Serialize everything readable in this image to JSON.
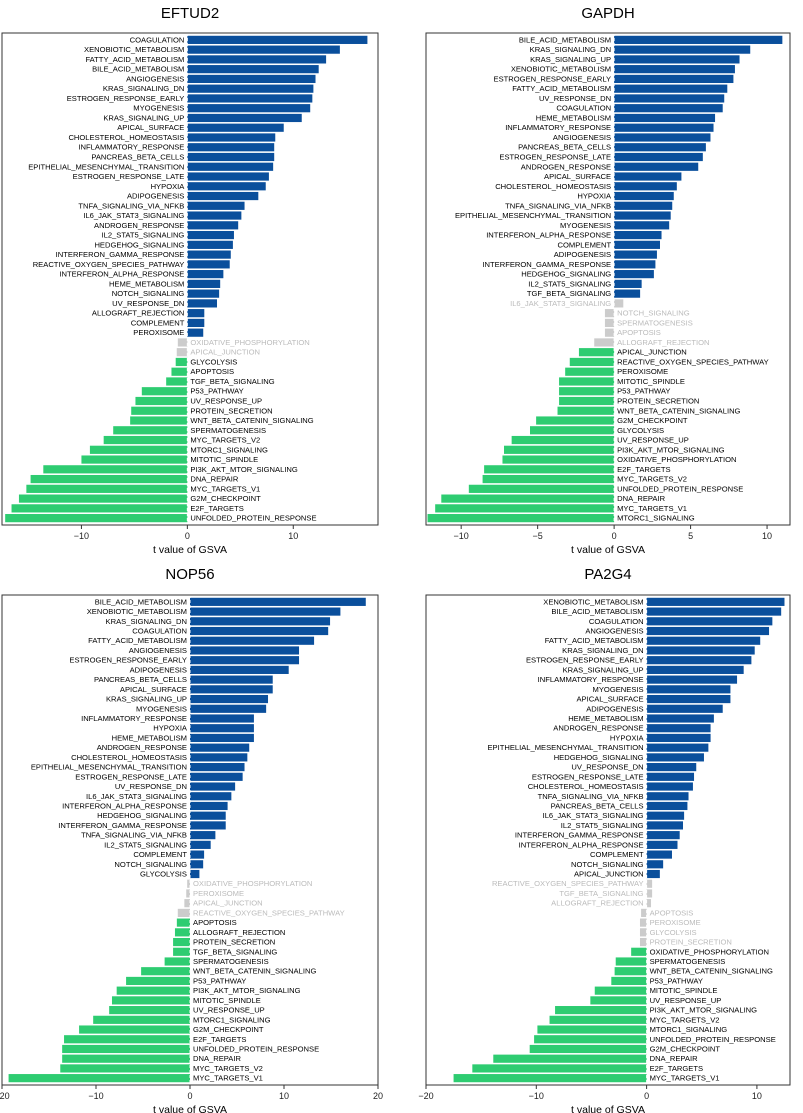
{
  "chart_data": [
    {
      "type": "bar",
      "title": "EFTUD2",
      "xlabel": "t value of GSVA",
      "xlim": [
        -17.5,
        18.0
      ],
      "xticks": [
        -10,
        0,
        10
      ],
      "orientation": "horizontal",
      "colors": {
        "positive": "#0a4f9c",
        "negative": "#2ecc71",
        "not_significant": "#cccccc"
      },
      "categories": [
        "COAGULATION",
        "XENOBIOTIC_METABOLISM",
        "FATTY_ACID_METABOLISM",
        "BILE_ACID_METABOLISM",
        "ANGIOGENESIS",
        "KRAS_SIGNALING_DN",
        "ESTROGEN_RESPONSE_EARLY",
        "MYOGENESIS",
        "KRAS_SIGNALING_UP",
        "APICAL_SURFACE",
        "CHOLESTEROL_HOMEOSTASIS",
        "INFLAMMATORY_RESPONSE",
        "PANCREAS_BETA_CELLS",
        "EPITHELIAL_MESENCHYMAL_TRANSITION",
        "ESTROGEN_RESPONSE_LATE",
        "HYPOXIA",
        "ADIPOGENESIS",
        "TNFA_SIGNALING_VIA_NFKB",
        "IL6_JAK_STAT3_SIGNALING",
        "ANDROGEN_RESPONSE",
        "IL2_STAT5_SIGNALING",
        "HEDGEHOG_SIGNALING",
        "INTERFERON_GAMMA_RESPONSE",
        "REACTIVE_OXYGEN_SPECIES_PATHWAY",
        "INTERFERON_ALPHA_RESPONSE",
        "HEME_METABOLISM",
        "NOTCH_SIGNALING",
        "UV_RESPONSE_DN",
        "ALLOGRAFT_REJECTION",
        "COMPLEMENT",
        "PEROXISOME",
        "OXIDATIVE_PHOSPHORYLATION",
        "APICAL_JUNCTION",
        "GLYCOLYSIS",
        "APOPTOSIS",
        "TGF_BETA_SIGNALING",
        "P53_PATHWAY",
        "UV_RESPONSE_UP",
        "PROTEIN_SECRETION",
        "WNT_BETA_CATENIN_SIGNALING",
        "SPERMATOGENESIS",
        "MYC_TARGETS_V2",
        "MTORC1_SIGNALING",
        "MITOTIC_SPINDLE",
        "PI3K_AKT_MTOR_SIGNALING",
        "DNA_REPAIR",
        "MYC_TARGETS_V1",
        "G2M_CHECKPOINT",
        "E2F_TARGETS",
        "UNFOLDED_PROTEIN_RESPONSE"
      ],
      "values": [
        17.0,
        14.4,
        13.1,
        12.4,
        12.1,
        11.9,
        11.8,
        11.6,
        10.8,
        9.1,
        8.3,
        8.2,
        8.2,
        8.1,
        7.7,
        7.4,
        6.7,
        5.4,
        5.1,
        4.8,
        4.4,
        4.3,
        4.1,
        4.0,
        3.4,
        3.1,
        3.0,
        2.8,
        1.6,
        1.6,
        1.5,
        -0.9,
        -1.0,
        -1.1,
        -1.5,
        -2.0,
        -4.3,
        -4.9,
        -5.3,
        -5.4,
        -7.0,
        -7.9,
        -9.2,
        -10.0,
        -13.6,
        -14.8,
        -15.2,
        -15.9,
        -16.6,
        -17.2
      ],
      "significant": [
        1,
        1,
        1,
        1,
        1,
        1,
        1,
        1,
        1,
        1,
        1,
        1,
        1,
        1,
        1,
        1,
        1,
        1,
        1,
        1,
        1,
        1,
        1,
        1,
        1,
        1,
        1,
        1,
        1,
        1,
        1,
        0,
        0,
        1,
        1,
        1,
        1,
        1,
        1,
        1,
        1,
        1,
        1,
        1,
        1,
        1,
        1,
        1,
        1,
        1
      ]
    },
    {
      "type": "bar",
      "title": "GAPDH",
      "xlabel": "t value of GSVA",
      "xlim": [
        -12.3,
        11.5
      ],
      "xticks": [
        -10,
        -5,
        0,
        5,
        10
      ],
      "orientation": "horizontal",
      "colors": {
        "positive": "#0a4f9c",
        "negative": "#2ecc71",
        "not_significant": "#cccccc"
      },
      "categories": [
        "BILE_ACID_METABOLISM",
        "KRAS_SIGNALING_DN",
        "KRAS_SIGNALING_UP",
        "XENOBIOTIC_METABOLISM",
        "ESTROGEN_RESPONSE_EARLY",
        "FATTY_ACID_METABOLISM",
        "UV_RESPONSE_DN",
        "COAGULATION",
        "HEME_METABOLISM",
        "INFLAMMATORY_RESPONSE",
        "ANGIOGENESIS",
        "PANCREAS_BETA_CELLS",
        "ESTROGEN_RESPONSE_LATE",
        "ANDROGEN_RESPONSE",
        "APICAL_SURFACE",
        "CHOLESTEROL_HOMEOSTASIS",
        "HYPOXIA",
        "TNFA_SIGNALING_VIA_NFKB",
        "EPITHELIAL_MESENCHYMAL_TRANSITION",
        "MYOGENESIS",
        "INTERFERON_ALPHA_RESPONSE",
        "COMPLEMENT",
        "ADIPOGENESIS",
        "INTERFERON_GAMMA_RESPONSE",
        "HEDGEHOG_SIGNALING",
        "IL2_STAT5_SIGNALING",
        "TGF_BETA_SIGNALING",
        "IL6_JAK_STAT3_SIGNALING",
        "NOTCH_SIGNALING",
        "SPERMATOGENESIS",
        "APOPTOSIS",
        "ALLOGRAFT_REJECTION",
        "APICAL_JUNCTION",
        "REACTIVE_OXYGEN_SPECIES_PATHWAY",
        "PEROXISOME",
        "MITOTIC_SPINDLE",
        "P53_PATHWAY",
        "PROTEIN_SECRETION",
        "WNT_BETA_CATENIN_SIGNALING",
        "G2M_CHECKPOINT",
        "GLYCOLYSIS",
        "UV_RESPONSE_UP",
        "PI3K_AKT_MTOR_SIGNALING",
        "OXIDATIVE_PHOSPHORYLATION",
        "E2F_TARGETS",
        "MYC_TARGETS_V2",
        "UNFOLDED_PROTEIN_RESPONSE",
        "DNA_REPAIR",
        "MYC_TARGETS_V1",
        "MTORC1_SIGNALING"
      ],
      "values": [
        11.0,
        8.9,
        8.2,
        7.9,
        7.8,
        7.4,
        7.2,
        7.1,
        6.6,
        6.5,
        6.3,
        6.0,
        5.8,
        5.5,
        4.4,
        4.1,
        3.9,
        3.8,
        3.7,
        3.6,
        3.1,
        3.0,
        2.8,
        2.7,
        2.6,
        1.8,
        1.7,
        0.6,
        -0.6,
        -0.6,
        -0.6,
        -1.3,
        -2.3,
        -2.9,
        -3.2,
        -3.6,
        -3.6,
        -3.6,
        -3.7,
        -5.1,
        -5.5,
        -6.7,
        -7.2,
        -7.3,
        -8.5,
        -8.6,
        -9.5,
        -11.3,
        -11.7,
        -12.2
      ],
      "significant": [
        1,
        1,
        1,
        1,
        1,
        1,
        1,
        1,
        1,
        1,
        1,
        1,
        1,
        1,
        1,
        1,
        1,
        1,
        1,
        1,
        1,
        1,
        1,
        1,
        1,
        1,
        1,
        0,
        0,
        0,
        0,
        0,
        1,
        1,
        1,
        1,
        1,
        1,
        1,
        1,
        1,
        1,
        1,
        1,
        1,
        1,
        1,
        1,
        1,
        1
      ]
    },
    {
      "type": "bar",
      "title": "NOP56",
      "xlabel": "t value of GSVA",
      "xlim": [
        -20.0,
        20.0
      ],
      "xticks": [
        -20,
        -10,
        0,
        10,
        20
      ],
      "orientation": "horizontal",
      "colors": {
        "positive": "#0a4f9c",
        "negative": "#2ecc71",
        "not_significant": "#cccccc"
      },
      "categories": [
        "BILE_ACID_METABOLISM",
        "XENOBIOTIC_METABOLISM",
        "KRAS_SIGNALING_DN",
        "COAGULATION",
        "FATTY_ACID_METABOLISM",
        "ANGIOGENESIS",
        "ESTROGEN_RESPONSE_EARLY",
        "ADIPOGENESIS",
        "PANCREAS_BETA_CELLS",
        "APICAL_SURFACE",
        "KRAS_SIGNALING_UP",
        "MYOGENESIS",
        "INFLAMMATORY_RESPONSE",
        "HYPOXIA",
        "HEME_METABOLISM",
        "ANDROGEN_RESPONSE",
        "CHOLESTEROL_HOMEOSTASIS",
        "EPITHELIAL_MESENCHYMAL_TRANSITION",
        "ESTROGEN_RESPONSE_LATE",
        "UV_RESPONSE_DN",
        "IL6_JAK_STAT3_SIGNALING",
        "INTERFERON_ALPHA_RESPONSE",
        "HEDGEHOG_SIGNALING",
        "INTERFERON_GAMMA_RESPONSE",
        "TNFA_SIGNALING_VIA_NFKB",
        "IL2_STAT5_SIGNALING",
        "COMPLEMENT",
        "NOTCH_SIGNALING",
        "GLYCOLYSIS",
        "OXIDATIVE_PHOSPHORYLATION",
        "PEROXISOME",
        "APICAL_JUNCTION",
        "REACTIVE_OXYGEN_SPECIES_PATHWAY",
        "APOPTOSIS",
        "ALLOGRAFT_REJECTION",
        "PROTEIN_SECRETION",
        "TGF_BETA_SIGNALING",
        "SPERMATOGENESIS",
        "WNT_BETA_CATENIN_SIGNALING",
        "P53_PATHWAY",
        "PI3K_AKT_MTOR_SIGNALING",
        "MITOTIC_SPINDLE",
        "UV_RESPONSE_UP",
        "MTORC1_SIGNALING",
        "G2M_CHECKPOINT",
        "E2F_TARGETS",
        "UNFOLDED_PROTEIN_RESPONSE",
        "DNA_REPAIR",
        "MYC_TARGETS_V2",
        "MYC_TARGETS_V1"
      ],
      "values": [
        18.7,
        16.0,
        14.9,
        14.7,
        13.2,
        11.6,
        11.6,
        10.5,
        8.8,
        8.8,
        8.3,
        8.1,
        6.8,
        6.8,
        6.8,
        6.3,
        6.1,
        5.8,
        5.6,
        4.8,
        4.4,
        4.0,
        3.8,
        3.8,
        2.7,
        2.2,
        1.5,
        1.4,
        1.0,
        -0.3,
        -0.4,
        -0.6,
        -1.3,
        -1.4,
        -1.6,
        -1.8,
        -1.8,
        -2.7,
        -5.2,
        -6.8,
        -7.8,
        -8.3,
        -8.6,
        -10.3,
        -11.8,
        -13.4,
        -13.6,
        -13.6,
        -13.8,
        -19.3
      ],
      "significant": [
        1,
        1,
        1,
        1,
        1,
        1,
        1,
        1,
        1,
        1,
        1,
        1,
        1,
        1,
        1,
        1,
        1,
        1,
        1,
        1,
        1,
        1,
        1,
        1,
        1,
        1,
        1,
        1,
        1,
        0,
        0,
        0,
        0,
        1,
        1,
        1,
        1,
        1,
        1,
        1,
        1,
        1,
        1,
        1,
        1,
        1,
        1,
        1,
        1,
        1
      ]
    },
    {
      "type": "bar",
      "title": "PA2G4",
      "xlabel": "t value of GSVA",
      "xlim": [
        -20.0,
        13.0
      ],
      "xticks": [
        -20,
        -10,
        0,
        10
      ],
      "orientation": "horizontal",
      "colors": {
        "positive": "#0a4f9c",
        "negative": "#2ecc71",
        "not_significant": "#cccccc"
      },
      "categories": [
        "XENOBIOTIC_METABOLISM",
        "BILE_ACID_METABOLISM",
        "COAGULATION",
        "ANGIOGENESIS",
        "FATTY_ACID_METABOLISM",
        "KRAS_SIGNALING_DN",
        "ESTROGEN_RESPONSE_EARLY",
        "KRAS_SIGNALING_UP",
        "INFLAMMATORY_RESPONSE",
        "MYOGENESIS",
        "APICAL_SURFACE",
        "ADIPOGENESIS",
        "HEME_METABOLISM",
        "ANDROGEN_RESPONSE",
        "HYPOXIA",
        "EPITHELIAL_MESENCHYMAL_TRANSITION",
        "HEDGEHOG_SIGNALING",
        "UV_RESPONSE_DN",
        "ESTROGEN_RESPONSE_LATE",
        "CHOLESTEROL_HOMEOSTASIS",
        "TNFA_SIGNALING_VIA_NFKB",
        "PANCREAS_BETA_CELLS",
        "IL6_JAK_STAT3_SIGNALING",
        "IL2_STAT5_SIGNALING",
        "INTERFERON_GAMMA_RESPONSE",
        "INTERFERON_ALPHA_RESPONSE",
        "COMPLEMENT",
        "NOTCH_SIGNALING",
        "APICAL_JUNCTION",
        "REACTIVE_OXYGEN_SPECIES_PATHWAY",
        "TGF_BETA_SIGNALING",
        "ALLOGRAFT_REJECTION",
        "APOPTOSIS",
        "PEROXISOME",
        "GLYCOLYSIS",
        "PROTEIN_SECRETION",
        "OXIDATIVE_PHOSPHORYLATION",
        "SPERMATOGENESIS",
        "WNT_BETA_CATENIN_SIGNALING",
        "P53_PATHWAY",
        "MITOTIC_SPINDLE",
        "UV_RESPONSE_UP",
        "PI3K_AKT_MTOR_SIGNALING",
        "MYC_TARGETS_V2",
        "MTORC1_SIGNALING",
        "UNFOLDED_PROTEIN_RESPONSE",
        "G2M_CHECKPOINT",
        "DNA_REPAIR",
        "E2F_TARGETS",
        "MYC_TARGETS_V1"
      ],
      "values": [
        12.5,
        12.2,
        11.4,
        11.1,
        10.3,
        9.8,
        9.5,
        8.8,
        8.2,
        7.6,
        7.6,
        6.9,
        6.1,
        5.8,
        5.8,
        5.6,
        5.2,
        4.5,
        4.3,
        4.2,
        3.8,
        3.7,
        3.4,
        3.3,
        3.0,
        2.8,
        2.3,
        1.5,
        1.2,
        0.5,
        0.5,
        0.4,
        -0.5,
        -0.6,
        -0.6,
        -0.6,
        -1.4,
        -2.8,
        -2.9,
        -3.2,
        -4.7,
        -5.1,
        -8.3,
        -8.8,
        -9.9,
        -10.2,
        -10.6,
        -13.9,
        -15.8,
        -17.5
      ],
      "significant": [
        1,
        1,
        1,
        1,
        1,
        1,
        1,
        1,
        1,
        1,
        1,
        1,
        1,
        1,
        1,
        1,
        1,
        1,
        1,
        1,
        1,
        1,
        1,
        1,
        1,
        1,
        1,
        1,
        1,
        0,
        0,
        0,
        0,
        0,
        0,
        0,
        1,
        1,
        1,
        1,
        1,
        1,
        1,
        1,
        1,
        1,
        1,
        1,
        1,
        1
      ]
    }
  ]
}
